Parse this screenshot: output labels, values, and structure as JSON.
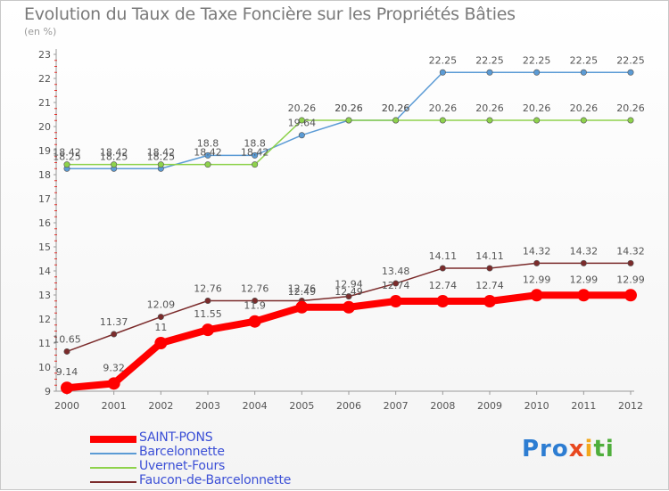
{
  "chart_data": {
    "type": "line",
    "title": "Evolution du Taux de Taxe Foncière sur les Propriétés Bâties",
    "subtitle": "(en %)",
    "x": [
      "2000",
      "2001",
      "2002",
      "2003",
      "2004",
      "2005",
      "2006",
      "2007",
      "2008",
      "2009",
      "2010",
      "2011",
      "2012"
    ],
    "ylim": [
      9,
      23
    ],
    "yticks": [
      9,
      10,
      11,
      12,
      13,
      14,
      15,
      16,
      17,
      18,
      19,
      20,
      21,
      22,
      23
    ],
    "grid": false,
    "legend_position": "bottom-left",
    "series": [
      {
        "name": "SAINT-PONS",
        "color": "#ff0000",
        "values": [
          9.14,
          9.32,
          11,
          11.55,
          11.9,
          12.49,
          12.49,
          12.74,
          12.74,
          12.74,
          12.99,
          12.99,
          12.99
        ],
        "labels": [
          "9.14",
          "9.32",
          "11",
          "11.55",
          "11.9",
          "12.49",
          "12.49",
          "12.74",
          "12.74",
          "12.74",
          "12.99",
          "12.99",
          "12.99"
        ]
      },
      {
        "name": "Barcelonnette",
        "color": "#5b9bd5",
        "values": [
          18.25,
          18.25,
          18.25,
          18.8,
          18.8,
          19.64,
          20.26,
          20.26,
          22.25,
          22.25,
          22.25,
          22.25,
          22.25
        ],
        "labels": [
          "18.25",
          "18.25",
          "18.25",
          "18.8",
          "18.8",
          "19.64",
          "20.26",
          "20.26",
          "22.25",
          "22.25",
          "22.25",
          "22.25",
          "22.25"
        ]
      },
      {
        "name": "Uvernet-Fours",
        "color": "#8ed24c",
        "values": [
          18.42,
          18.42,
          18.42,
          18.42,
          18.42,
          20.26,
          20.26,
          20.26,
          20.26,
          20.26,
          20.26,
          20.26,
          20.26
        ],
        "labels": [
          "18.42",
          "18.42",
          "18.42",
          "18.42",
          "18.42",
          "20.26",
          "20.26",
          "20.26",
          "20.26",
          "20.26",
          "20.26",
          "20.26",
          "20.26"
        ]
      },
      {
        "name": "Faucon-de-Barcelonnette",
        "color": "#7b2b2b",
        "values": [
          10.65,
          11.37,
          12.09,
          12.76,
          12.76,
          12.76,
          12.94,
          13.48,
          14.11,
          14.11,
          14.32,
          14.32,
          14.32
        ],
        "labels": [
          "10.65",
          "11.37",
          "12.09",
          "12.76",
          "12.76",
          "12.76",
          "12.94",
          "13.48",
          "14.11",
          "14.11",
          "14.32",
          "14.32",
          "14.32"
        ]
      }
    ]
  },
  "logo": {
    "text": "Proxiti"
  }
}
